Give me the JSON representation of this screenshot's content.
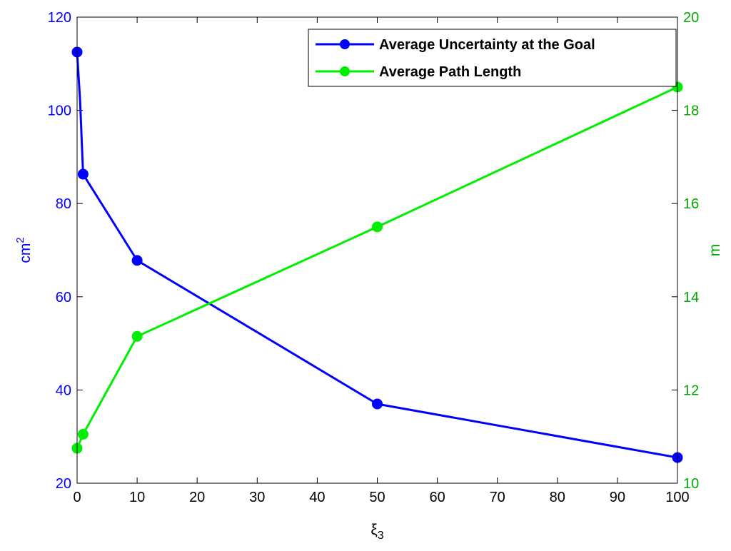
{
  "chart_data": {
    "type": "line",
    "xlabel": "ξ3",
    "xlim": [
      0,
      100
    ],
    "xticks": [
      "0",
      "10",
      "20",
      "30",
      "40",
      "50",
      "60",
      "70",
      "80",
      "90",
      "100"
    ],
    "y_left": {
      "label": "cm2",
      "ylim": [
        20,
        120
      ],
      "ticks": [
        "20",
        "40",
        "60",
        "80",
        "100",
        "120"
      ],
      "color": "#0000ff"
    },
    "y_right": {
      "label": "m",
      "ylim": [
        10,
        20
      ],
      "ticks": [
        "10",
        "12",
        "14",
        "16",
        "18",
        "20"
      ],
      "color": "#00aa00"
    },
    "legend_position": "top-right",
    "grid": false,
    "series": [
      {
        "name": "Average Uncertainty at the Goal",
        "axis": "left",
        "color": "#0000ff",
        "x": [
          0,
          0.5,
          1,
          10,
          50,
          100
        ],
        "y": [
          112.5,
          102,
          86.3,
          67.8,
          37,
          25.5
        ]
      },
      {
        "name": "Average Path Length",
        "axis": "right",
        "color": "#00ee00",
        "x": [
          0,
          1,
          10,
          50,
          100
        ],
        "y": [
          10.75,
          11.05,
          13.15,
          15.5,
          18.5
        ]
      }
    ]
  }
}
